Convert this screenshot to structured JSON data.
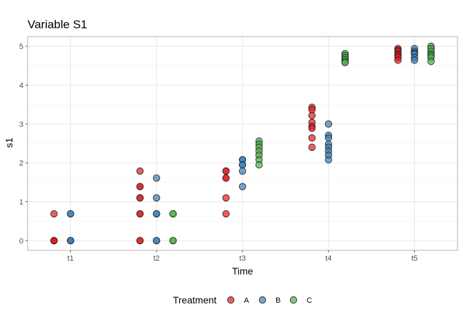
{
  "chart_data": {
    "type": "scatter",
    "title": "Variable S1",
    "xlabel": "Time",
    "ylabel": "s1",
    "categories": [
      "t1",
      "t2",
      "t3",
      "t4",
      "t5"
    ],
    "yticks": [
      0,
      1,
      2,
      3,
      4,
      5
    ],
    "ylim": [
      -0.25,
      5.25
    ],
    "grid": true,
    "legend": {
      "title": "Treatment",
      "position": "bottom"
    },
    "series": [
      {
        "name": "A",
        "color": "#e41a1c",
        "points": [
          [
            "t1",
            0.69
          ],
          [
            "t1",
            0
          ],
          [
            "t1",
            0
          ],
          [
            "t1",
            0
          ],
          [
            "t1",
            0
          ],
          [
            "t2",
            1.79
          ],
          [
            "t2",
            1.39
          ],
          [
            "t2",
            1.39
          ],
          [
            "t2",
            1.1
          ],
          [
            "t2",
            1.1
          ],
          [
            "t2",
            0.69
          ],
          [
            "t2",
            0.69
          ],
          [
            "t2",
            0
          ],
          [
            "t2",
            0
          ],
          [
            "t3",
            1.79
          ],
          [
            "t3",
            1.79
          ],
          [
            "t3",
            1.61
          ],
          [
            "t3",
            1.61
          ],
          [
            "t3",
            1.1
          ],
          [
            "t3",
            0.69
          ],
          [
            "t4",
            3.43
          ],
          [
            "t4",
            3.37
          ],
          [
            "t4",
            3.22
          ],
          [
            "t4",
            3.04
          ],
          [
            "t4",
            2.94
          ],
          [
            "t4",
            2.89
          ],
          [
            "t4",
            2.64
          ],
          [
            "t4",
            2.4
          ],
          [
            "t5",
            4.94
          ],
          [
            "t5",
            4.9
          ],
          [
            "t5",
            4.87
          ],
          [
            "t5",
            4.8
          ],
          [
            "t5",
            4.76
          ],
          [
            "t5",
            4.71
          ],
          [
            "t5",
            4.64
          ]
        ]
      },
      {
        "name": "B",
        "color": "#377eb8",
        "points": [
          [
            "t1",
            0.69
          ],
          [
            "t1",
            0.69
          ],
          [
            "t1",
            0
          ],
          [
            "t1",
            0
          ],
          [
            "t1",
            0
          ],
          [
            "t2",
            1.61
          ],
          [
            "t2",
            1.1
          ],
          [
            "t2",
            0.69
          ],
          [
            "t2",
            0.69
          ],
          [
            "t2",
            0
          ],
          [
            "t2",
            0
          ],
          [
            "t3",
            2.08
          ],
          [
            "t3",
            2.08
          ],
          [
            "t3",
            1.95
          ],
          [
            "t3",
            1.95
          ],
          [
            "t3",
            1.79
          ],
          [
            "t3",
            1.39
          ],
          [
            "t4",
            3.0
          ],
          [
            "t4",
            2.71
          ],
          [
            "t4",
            2.64
          ],
          [
            "t4",
            2.48
          ],
          [
            "t4",
            2.4
          ],
          [
            "t4",
            2.3
          ],
          [
            "t4",
            2.2
          ],
          [
            "t4",
            2.08
          ],
          [
            "t5",
            4.94
          ],
          [
            "t5",
            4.87
          ],
          [
            "t5",
            4.83
          ],
          [
            "t5",
            4.8
          ],
          [
            "t5",
            4.71
          ],
          [
            "t5",
            4.64
          ]
        ]
      },
      {
        "name": "C",
        "color": "#4daf4a",
        "points": [
          [
            "t2",
            0.69
          ],
          [
            "t2",
            0.69
          ],
          [
            "t2",
            0
          ],
          [
            "t2",
            0
          ],
          [
            "t3",
            2.56
          ],
          [
            "t3",
            2.48
          ],
          [
            "t3",
            2.4
          ],
          [
            "t3",
            2.3
          ],
          [
            "t3",
            2.2
          ],
          [
            "t3",
            2.08
          ],
          [
            "t3",
            1.95
          ],
          [
            "t4",
            4.81
          ],
          [
            "t4",
            4.76
          ],
          [
            "t4",
            4.71
          ],
          [
            "t4",
            4.66
          ],
          [
            "t4",
            4.61
          ],
          [
            "t4",
            4.58
          ],
          [
            "t5",
            5.0
          ],
          [
            "t5",
            4.94
          ],
          [
            "t5",
            4.87
          ],
          [
            "t5",
            4.8
          ],
          [
            "t5",
            4.76
          ],
          [
            "t5",
            4.71
          ],
          [
            "t5",
            4.61
          ]
        ]
      }
    ]
  }
}
